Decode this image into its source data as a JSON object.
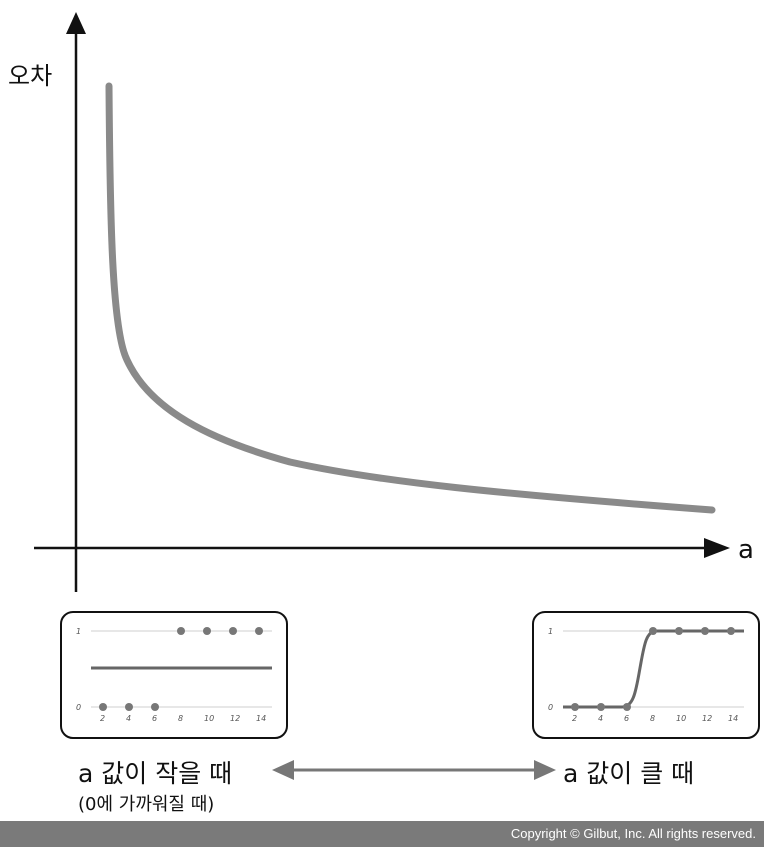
{
  "main_graph": {
    "y_axis_label": "오차",
    "x_axis_label": "a",
    "curve_color": "#8a8a8a",
    "axis_color": "#111111"
  },
  "left_panel": {
    "y_ticks": [
      "1",
      "0"
    ],
    "x_ticks": [
      "2",
      "4",
      "6",
      "8",
      "10",
      "12",
      "14"
    ],
    "points_top": [
      8,
      10,
      12,
      14
    ],
    "points_bottom": [
      2,
      4,
      6
    ],
    "line_level": 0.5
  },
  "right_panel": {
    "y_ticks": [
      "1",
      "0"
    ],
    "x_ticks": [
      "2",
      "4",
      "6",
      "8",
      "10",
      "12",
      "14"
    ],
    "points_top": [
      8,
      10,
      12,
      14
    ],
    "points_bottom": [
      2,
      4,
      6
    ]
  },
  "captions": {
    "left_main": "a 값이 작을 때",
    "left_sub": "(0에 가까워질 때)",
    "right_main": "a 값이 클 때"
  },
  "footer": {
    "copyright": "Copyright © Gilbut, Inc. All rights reserved."
  }
}
